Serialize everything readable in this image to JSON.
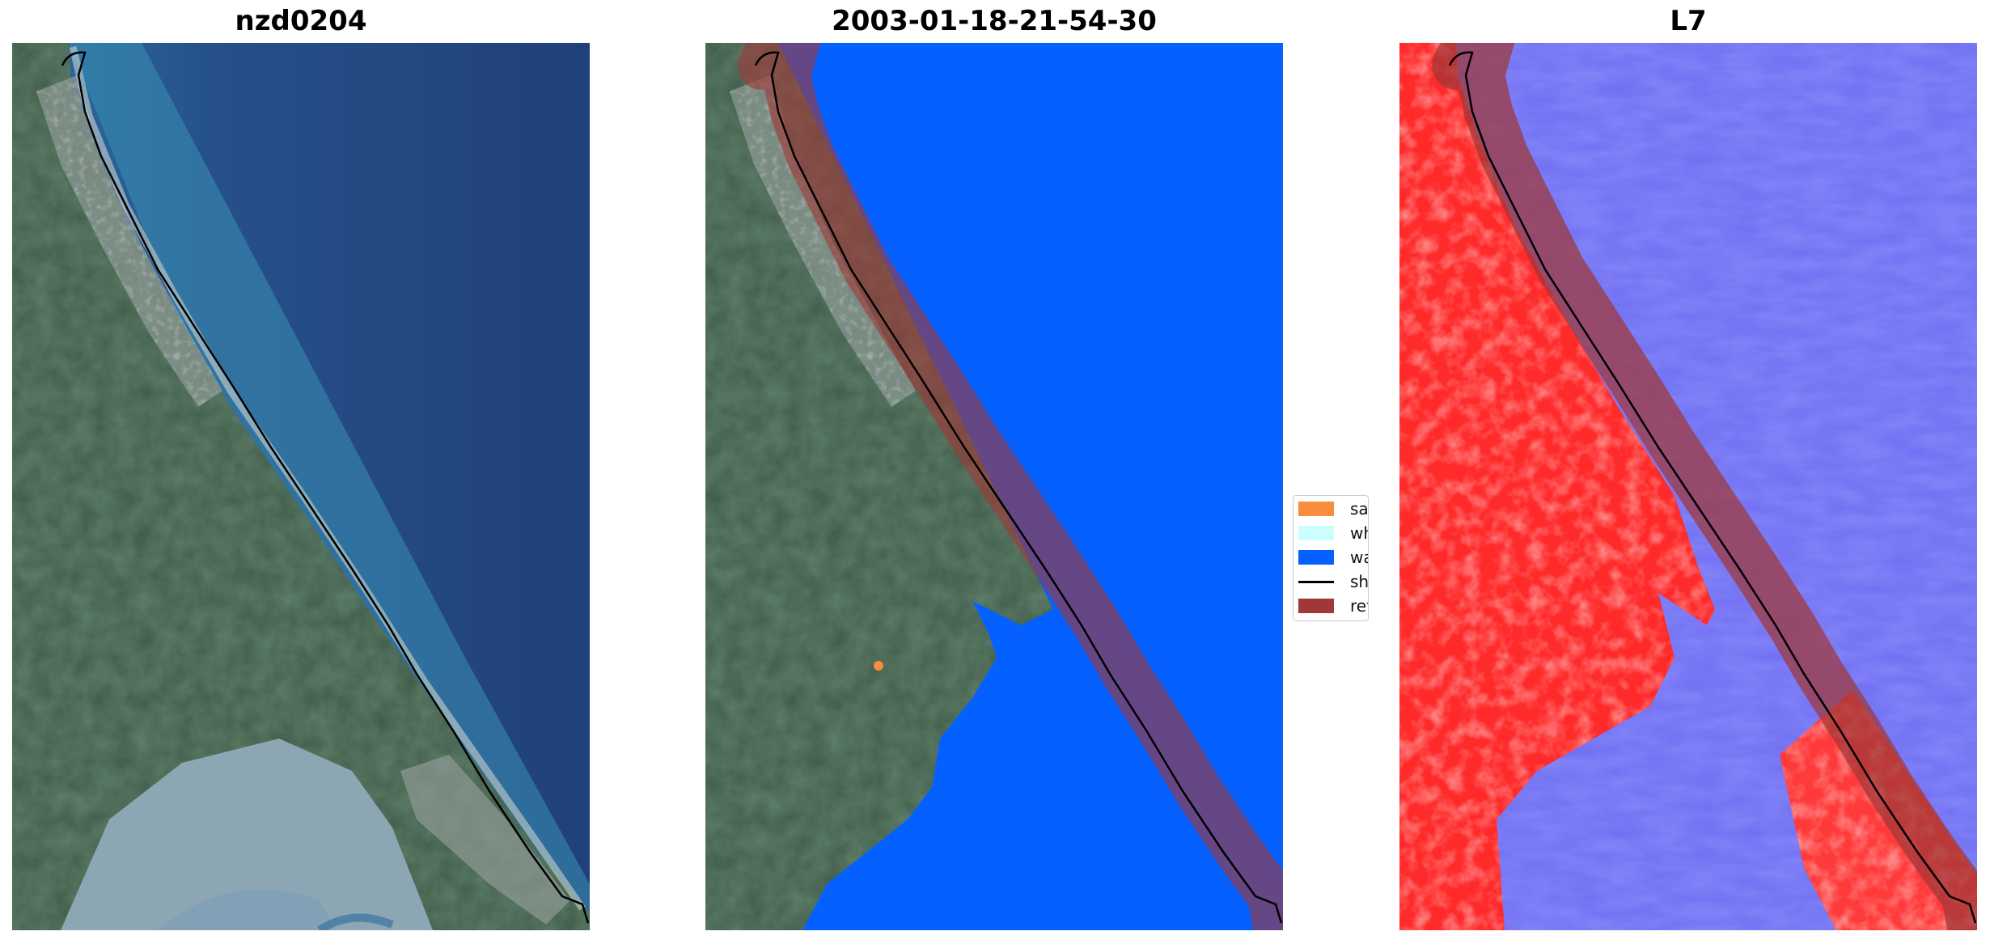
{
  "panels": [
    {
      "title": "nzd0204"
    },
    {
      "title": "2003-01-18-21-54-30"
    },
    {
      "title": "L7"
    }
  ],
  "legend": {
    "items": [
      {
        "label": "sand",
        "color": "#f88e3c",
        "kind": "patch"
      },
      {
        "label": "whitewater",
        "color": "#ccfefe",
        "kind": "patch"
      },
      {
        "label": "water",
        "color": "#0460ff",
        "kind": "patch"
      },
      {
        "label": "shoreline",
        "color": "#000000",
        "kind": "line"
      },
      {
        "label": "reference",
        "color": "#a03838",
        "kind": "patch"
      }
    ]
  }
}
